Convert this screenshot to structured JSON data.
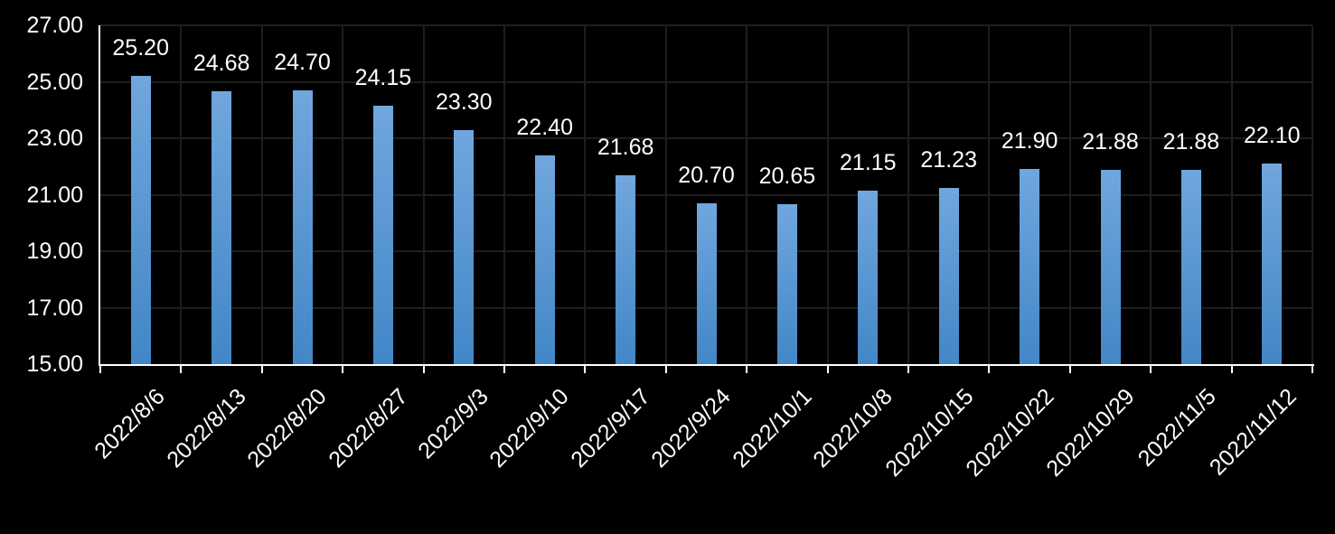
{
  "chart_data": {
    "type": "bar",
    "title": "",
    "xlabel": "",
    "ylabel": "",
    "categories": [
      "2022/8/6",
      "2022/8/13",
      "2022/8/20",
      "2022/8/27",
      "2022/9/3",
      "2022/9/10",
      "2022/9/17",
      "2022/9/24",
      "2022/10/1",
      "2022/10/8",
      "2022/10/15",
      "2022/10/22",
      "2022/10/29",
      "2022/11/5",
      "2022/11/12"
    ],
    "values": [
      25.2,
      24.68,
      24.7,
      24.15,
      23.3,
      22.4,
      21.68,
      20.7,
      20.65,
      21.15,
      21.23,
      21.9,
      21.88,
      21.88,
      22.1
    ],
    "value_labels": [
      "25.20",
      "24.68",
      "24.70",
      "24.15",
      "23.30",
      "22.40",
      "21.68",
      "20.70",
      "20.65",
      "21.15",
      "21.23",
      "21.90",
      "21.88",
      "21.88",
      "22.10"
    ],
    "ylim": [
      15.0,
      27.0
    ],
    "y_tick_values": [
      15,
      17,
      19,
      21,
      23,
      25,
      27
    ],
    "y_tick_labels": [
      "15.00",
      "17.00",
      "19.00",
      "21.00",
      "23.00",
      "25.00",
      "27.00"
    ],
    "x_tick_label_rotation": 45,
    "grid": true,
    "legend": "none",
    "colors": {
      "background": "#000000",
      "gridline": "#1e1e1e",
      "axis": "#ffffff",
      "text": "#ffffff",
      "bar_gradient_top": "#71a6de",
      "bar_gradient_bottom": "#4287c6"
    }
  }
}
